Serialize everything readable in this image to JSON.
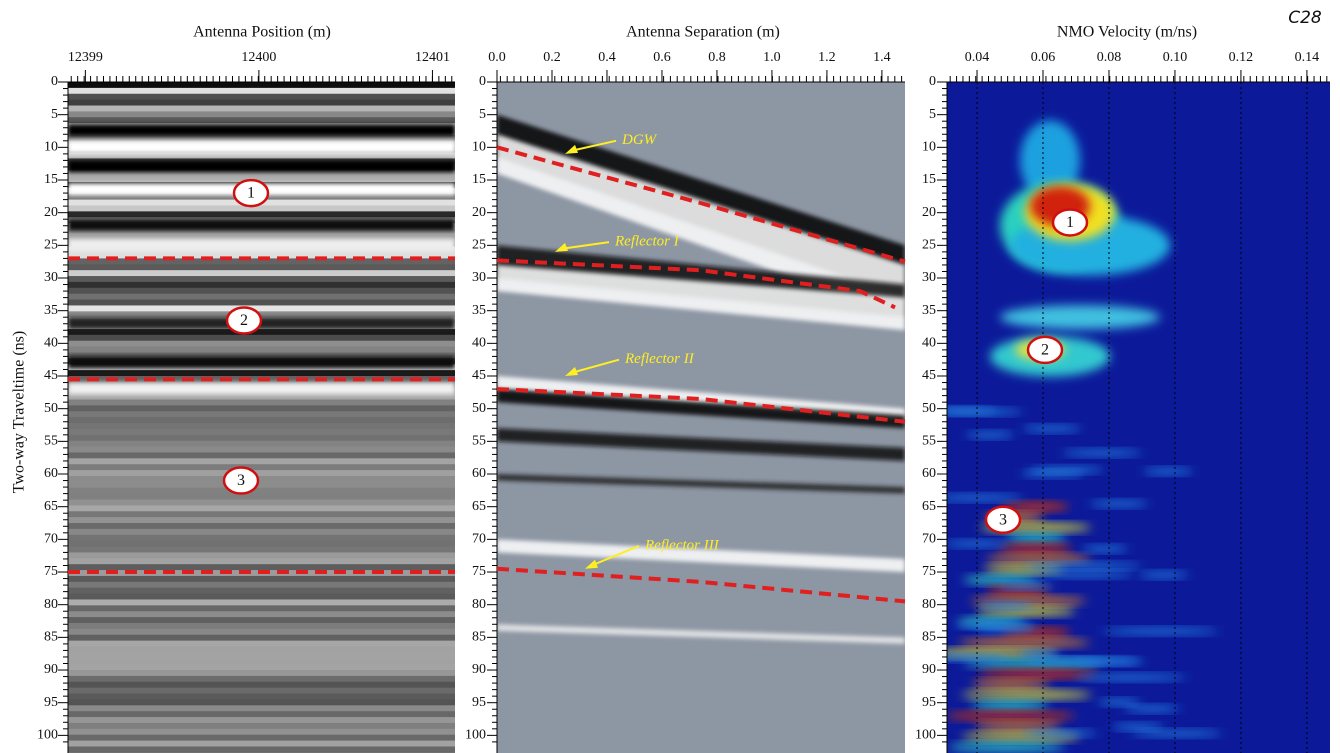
{
  "label": "C28",
  "y_axis_label": "Two-way Traveltime (ns)",
  "ylim": [
    0,
    102.7
  ],
  "yticks": [
    0,
    5,
    10,
    15,
    20,
    25,
    30,
    35,
    40,
    45,
    50,
    55,
    60,
    65,
    70,
    75,
    80,
    85,
    90,
    95,
    100
  ],
  "panels": [
    {
      "title": "Antenna Position (m)",
      "xlim": [
        12398.9,
        12401.13
      ],
      "xticks": [
        12399,
        12400,
        12401
      ],
      "markers": [
        "1",
        "2",
        "3"
      ]
    },
    {
      "title": "Antenna Separation (m)",
      "xlim": [
        0,
        1.484
      ],
      "xticks": [
        {
          "value": 0,
          "label": "0.0"
        },
        0.2,
        0.4,
        0.6,
        0.8,
        {
          "value": 1,
          "label": "1.0"
        },
        1.2,
        1.4
      ],
      "annotations": [
        "DGW",
        "Reflector I",
        "Reflector II",
        "Reflector III"
      ]
    },
    {
      "title": "NMO Velocity (m/ns)",
      "xlim": [
        0.0309,
        0.147
      ],
      "xticks": [
        0.04,
        0.06,
        0.08,
        {
          "value": 0.1,
          "label": "0.10"
        },
        0.12,
        0.14
      ],
      "markers": [
        "1",
        "2",
        "3"
      ]
    }
  ]
}
